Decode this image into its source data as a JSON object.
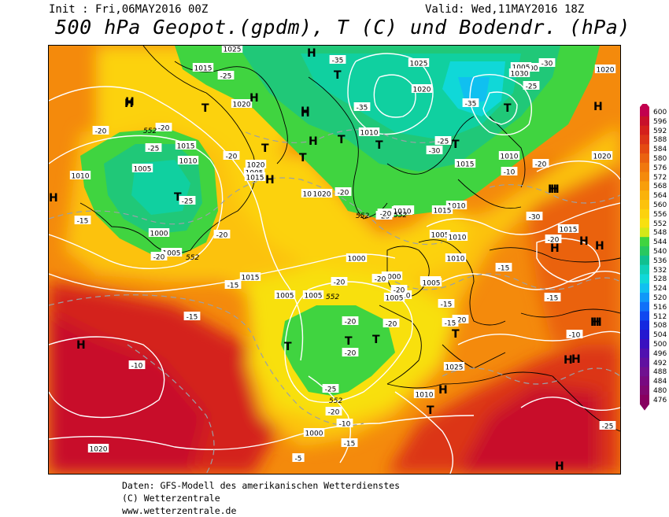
{
  "header": {
    "init": "Init : Fri,06MAY2016 00Z",
    "valid": "Valid: Wed,11MAY2016 18Z",
    "title": "500 hPa Geopot.(gpdm), T (C) und Bodendr. (hPa)"
  },
  "legend": {
    "levels": [
      "600",
      "596",
      "592",
      "588",
      "584",
      "580",
      "576",
      "572",
      "568",
      "564",
      "560",
      "556",
      "552",
      "548",
      "544",
      "540",
      "536",
      "532",
      "528",
      "524",
      "520",
      "516",
      "512",
      "508",
      "504",
      "500",
      "496",
      "492",
      "488",
      "484",
      "480",
      "476"
    ],
    "colors": [
      "#c2004e",
      "#c8102a",
      "#d4201c",
      "#dc3418",
      "#e44a12",
      "#ea6210",
      "#f0780e",
      "#f48a0c",
      "#f89e0a",
      "#fab20a",
      "#fcc20c",
      "#fcd20e",
      "#f8e010",
      "#d4e818",
      "#40d440",
      "#28c860",
      "#10c090",
      "#10d0b8",
      "#10d8d8",
      "#10c0f0",
      "#1098f8",
      "#1070f8",
      "#1048f0",
      "#1428e0",
      "#2418d0",
      "#3a10c0",
      "#5010b0",
      "#6010a0",
      "#701090",
      "#780a80",
      "#800870",
      "#880060"
    ]
  },
  "map": {
    "pressure_labels": [
      "1015",
      "1025",
      "1025",
      "1000",
      "1005",
      "1030",
      "1020",
      "1020",
      "1020",
      "1010",
      "1010",
      "1015",
      "1020",
      "1005",
      "1010",
      "1010",
      "1015",
      "1020",
      "1005",
      "1015",
      "1010",
      "1025",
      "1015",
      "1020",
      "1005",
      "1010",
      "1000",
      "1005",
      "1000",
      "1000",
      "1010",
      "1015",
      "1015",
      "1015",
      "1005",
      "1005",
      "1005",
      "1005",
      "1010",
      "1010",
      "1005",
      "1020",
      "1025",
      "1010",
      "1000"
    ],
    "temp_labels": [
      "-25",
      "-35",
      "-30",
      "-35",
      "-35",
      "-25",
      "-20",
      "-20",
      "-25",
      "-20",
      "-25",
      "-20",
      "-25",
      "-30",
      "-20",
      "-15",
      "-25",
      "-30",
      "-20",
      "-20",
      "-20",
      "-20",
      "-20",
      "-15",
      "-15",
      "-20",
      "-15",
      "-20",
      "-20",
      "-20",
      "-15",
      "-15",
      "-20",
      "-10",
      "-15",
      "-10",
      "-25",
      "-20",
      "-10",
      "-5",
      "-25",
      "-10",
      "-15",
      "-20"
    ],
    "geopot_labels": [
      "552",
      "552",
      "552",
      "552",
      "552",
      "552"
    ],
    "pressure_centers": [
      "H",
      "T",
      "H",
      "T",
      "H",
      "H",
      "T",
      "H",
      "H",
      "T",
      "H",
      "T",
      "H",
      "T",
      "H",
      "H",
      "T",
      "T",
      "T",
      "H",
      "H",
      "T",
      "H",
      "H",
      "H",
      "T",
      "T",
      "H",
      "H",
      "H",
      "H",
      "T",
      "T",
      "H",
      "H",
      "H"
    ]
  },
  "footer": {
    "line1": "Daten: GFS-Modell des amerikanischen Wetterdienstes",
    "line2": "(C) Wetterzentrale",
    "line3": "www.wetterzentrale.de"
  }
}
